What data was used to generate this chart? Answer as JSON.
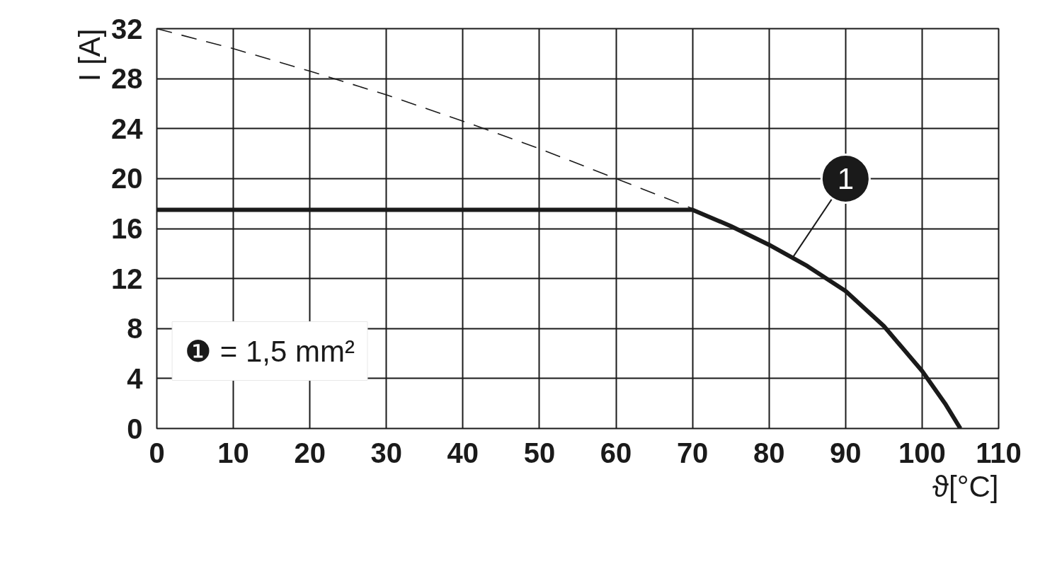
{
  "chart_data": {
    "type": "line",
    "xlabel": "ϑ[°C]",
    "ylabel": "I [A]",
    "xlim": [
      0,
      110
    ],
    "xticks": [
      0,
      10,
      20,
      30,
      40,
      50,
      60,
      70,
      80,
      90,
      100,
      110
    ],
    "ylim": [
      0,
      32
    ],
    "yticks": [
      0,
      4,
      8,
      12,
      16,
      20,
      24,
      28,
      32
    ],
    "grid": true,
    "marker": "none",
    "series": [
      {
        "color": "#1a1a1a",
        "line_style": "solid",
        "x": [
          0,
          70,
          75,
          80,
          85,
          90,
          95,
          100,
          103,
          105
        ],
        "values": [
          17.5,
          17.5,
          16.2,
          14.7,
          13,
          11,
          8.2,
          4.6,
          2,
          0
        ]
      },
      {
        "color": "#1a1a1a",
        "line_style": "dashed",
        "x": [
          0,
          10,
          20,
          30,
          40,
          50,
          60,
          70
        ],
        "values": [
          32,
          30.4,
          28.6,
          26.7,
          24.6,
          22.4,
          20,
          17.6
        ]
      }
    ],
    "annotations": [
      {
        "text": "1",
        "x": 83,
        "y": 13.6
      },
      "❶ = 1,5 mm²"
    ]
  }
}
